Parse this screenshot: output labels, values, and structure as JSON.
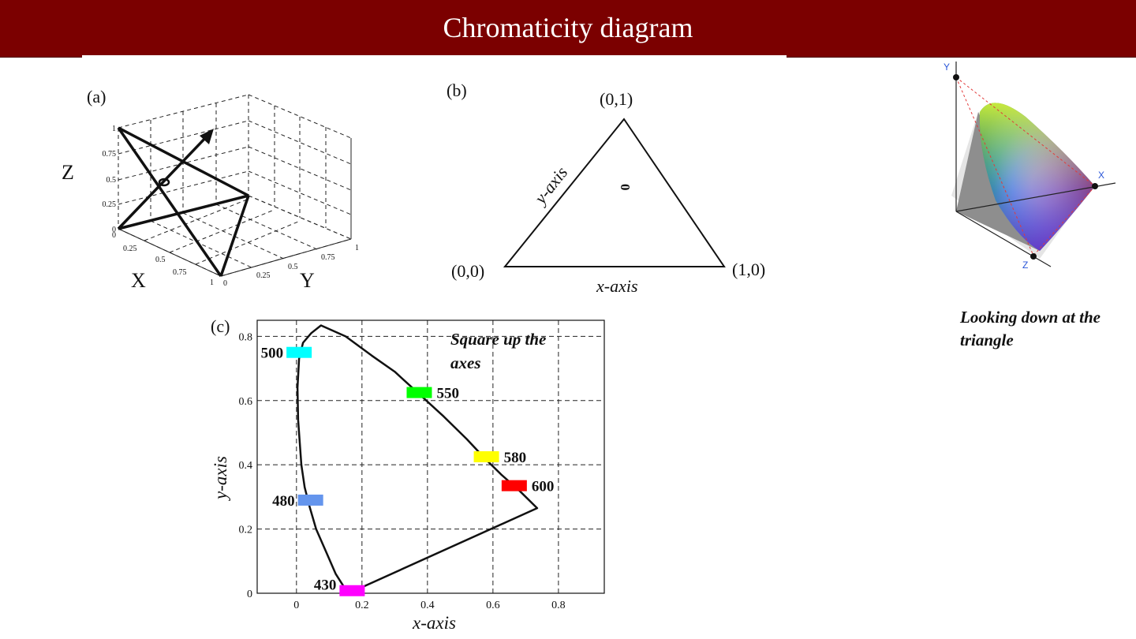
{
  "slide": {
    "title": "Chromaticity diagram",
    "caption": "Looking down at the triangle"
  },
  "panel_a": {
    "label": "(a)",
    "axis_x": "X",
    "axis_y": "Y",
    "axis_z": "Z",
    "z_ticks": [
      "1",
      "0.75",
      "0.5",
      "0.25",
      "0"
    ],
    "x_ticks": [
      "0",
      "0.25",
      "0.5",
      "0.75",
      "1"
    ],
    "y_ticks": [
      "0",
      "0.25",
      "0.5",
      "0.75",
      "1"
    ]
  },
  "panel_b": {
    "label": "(b)",
    "top_vertex": "(0,1)",
    "left_vertex": "(0,0)",
    "right_vertex": "(1,0)",
    "y_axis": "y-axis",
    "x_axis": "x-axis",
    "point_mark": "0"
  },
  "panel_c": {
    "label": "(c)",
    "annotation": "Square up the axes",
    "xlabel": "x-axis",
    "ylabel": "y-axis",
    "x_ticks": [
      "0",
      "0.2",
      "0.4",
      "0.6",
      "0.8"
    ],
    "y_ticks": [
      "0",
      "0.2",
      "0.4",
      "0.6",
      "0.8"
    ]
  },
  "gamut_3d": {
    "axis_x": "X",
    "axis_y": "Y",
    "axis_z": "Z"
  },
  "chart_data": {
    "type": "line",
    "xlabel": "x-axis",
    "ylabel": "y-axis",
    "xlim": [
      -0.12,
      0.94
    ],
    "ylim": [
      0,
      0.85
    ],
    "x_ticks": [
      0,
      0.2,
      0.4,
      0.6,
      0.8
    ],
    "y_ticks": [
      0,
      0.2,
      0.4,
      0.6,
      0.8
    ],
    "grid": true,
    "series": [
      {
        "x": [
          0.17,
          0.145,
          0.12,
          0.09,
          0.06,
          0.04,
          0.025,
          0.015,
          0.005,
          0.003,
          0.008,
          0.02,
          0.045,
          0.075,
          0.15,
          0.23,
          0.3,
          0.375,
          0.45,
          0.52,
          0.575,
          0.625,
          0.68,
          0.735,
          0.17
        ],
        "y": [
          0.005,
          0.02,
          0.06,
          0.13,
          0.2,
          0.27,
          0.33,
          0.4,
          0.54,
          0.64,
          0.73,
          0.78,
          0.81,
          0.834,
          0.8,
          0.74,
          0.69,
          0.62,
          0.55,
          0.48,
          0.42,
          0.37,
          0.32,
          0.265,
          0.005
        ]
      }
    ],
    "markers": [
      {
        "label": "500",
        "x": 0.008,
        "y": 0.75,
        "color": "#00ffff"
      },
      {
        "label": "550",
        "x": 0.375,
        "y": 0.625,
        "color": "#00ff00"
      },
      {
        "label": "580",
        "x": 0.58,
        "y": 0.425,
        "color": "#ffff00"
      },
      {
        "label": "600",
        "x": 0.665,
        "y": 0.335,
        "color": "#ff0000"
      },
      {
        "label": "480",
        "x": 0.043,
        "y": 0.29,
        "color": "#6495ed"
      },
      {
        "label": "430",
        "x": 0.17,
        "y": 0.008,
        "color": "#ff00ff"
      }
    ]
  }
}
